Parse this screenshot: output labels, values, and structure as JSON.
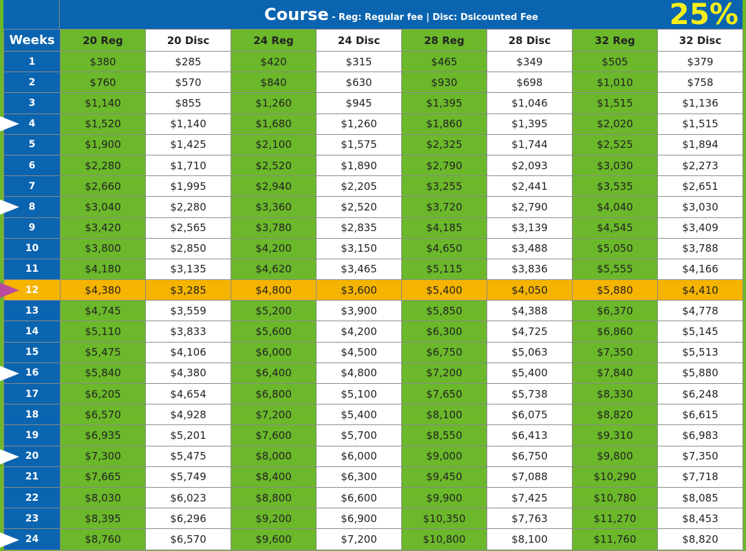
{
  "title": {
    "main": "Course",
    "subtitle": " - Reg: Regular fee | Disc: Dsicounted Fee",
    "discount": "25%"
  },
  "columns": [
    "Weeks",
    "20 Reg",
    "20 Disc",
    "24 Reg",
    "24 Disc",
    "28 Reg",
    "28 Disc",
    "32 Reg",
    "32 Disc"
  ],
  "colors": {
    "header_blue": "#0a64b0",
    "reg_green": "#6bb82a",
    "highlight_orange": "#f5b400",
    "discount_yellow": "#f5ee1a",
    "marker_magenta": "#b94aa0",
    "marker_white": "#ffffff"
  },
  "highlighted_week": "12",
  "rows": [
    {
      "week": "1",
      "values": [
        "$380",
        "$285",
        "$420",
        "$315",
        "$465",
        "$349",
        "$505",
        "$379"
      ]
    },
    {
      "week": "2",
      "values": [
        "$760",
        "$570",
        "$840",
        "$630",
        "$930",
        "$698",
        "$1,010",
        "$758"
      ]
    },
    {
      "week": "3",
      "values": [
        "$1,140",
        "$855",
        "$1,260",
        "$945",
        "$1,395",
        "$1,046",
        "$1,515",
        "$1,136"
      ]
    },
    {
      "week": "4",
      "marker": "white",
      "values": [
        "$1,520",
        "$1,140",
        "$1,680",
        "$1,260",
        "$1,860",
        "$1,395",
        "$2,020",
        "$1,515"
      ]
    },
    {
      "week": "5",
      "values": [
        "$1,900",
        "$1,425",
        "$2,100",
        "$1,575",
        "$2,325",
        "$1,744",
        "$2,525",
        "$1,894"
      ]
    },
    {
      "week": "6",
      "values": [
        "$2,280",
        "$1,710",
        "$2,520",
        "$1,890",
        "$2,790",
        "$2,093",
        "$3,030",
        "$2,273"
      ]
    },
    {
      "week": "7",
      "values": [
        "$2,660",
        "$1,995",
        "$2,940",
        "$2,205",
        "$3,255",
        "$2,441",
        "$3,535",
        "$2,651"
      ]
    },
    {
      "week": "8",
      "marker": "white",
      "values": [
        "$3,040",
        "$2,280",
        "$3,360",
        "$2,520",
        "$3,720",
        "$2,790",
        "$4,040",
        "$3,030"
      ]
    },
    {
      "week": "9",
      "values": [
        "$3,420",
        "$2,565",
        "$3,780",
        "$2,835",
        "$4,185",
        "$3,139",
        "$4,545",
        "$3,409"
      ]
    },
    {
      "week": "10",
      "values": [
        "$3,800",
        "$2,850",
        "$4,200",
        "$3,150",
        "$4,650",
        "$3,488",
        "$5,050",
        "$3,788"
      ]
    },
    {
      "week": "11",
      "values": [
        "$4,180",
        "$3,135",
        "$4,620",
        "$3,465",
        "$5,115",
        "$3,836",
        "$5,555",
        "$4,166"
      ]
    },
    {
      "week": "12",
      "marker": "magenta",
      "values": [
        "$4,380",
        "$3,285",
        "$4,800",
        "$3,600",
        "$5,400",
        "$4,050",
        "$5,880",
        "$4,410"
      ]
    },
    {
      "week": "13",
      "values": [
        "$4,745",
        "$3,559",
        "$5,200",
        "$3,900",
        "$5,850",
        "$4,388",
        "$6,370",
        "$4,778"
      ]
    },
    {
      "week": "14",
      "values": [
        "$5,110",
        "$3,833",
        "$5,600",
        "$4,200",
        "$6,300",
        "$4,725",
        "$6,860",
        "$5,145"
      ]
    },
    {
      "week": "15",
      "values": [
        "$5,475",
        "$4,106",
        "$6,000",
        "$4,500",
        "$6,750",
        "$5,063",
        "$7,350",
        "$5,513"
      ]
    },
    {
      "week": "16",
      "marker": "white",
      "values": [
        "$5,840",
        "$4,380",
        "$6,400",
        "$4,800",
        "$7,200",
        "$5,400",
        "$7,840",
        "$5,880"
      ]
    },
    {
      "week": "17",
      "values": [
        "$6,205",
        "$4,654",
        "$6,800",
        "$5,100",
        "$7,650",
        "$5,738",
        "$8,330",
        "$6,248"
      ]
    },
    {
      "week": "18",
      "values": [
        "$6,570",
        "$4,928",
        "$7,200",
        "$5,400",
        "$8,100",
        "$6,075",
        "$8,820",
        "$6,615"
      ]
    },
    {
      "week": "19",
      "values": [
        "$6,935",
        "$5,201",
        "$7,600",
        "$5,700",
        "$8,550",
        "$6,413",
        "$9,310",
        "$6,983"
      ]
    },
    {
      "week": "20",
      "marker": "white",
      "values": [
        "$7,300",
        "$5,475",
        "$8,000",
        "$6,000",
        "$9,000",
        "$6,750",
        "$9,800",
        "$7,350"
      ]
    },
    {
      "week": "21",
      "values": [
        "$7,665",
        "$5,749",
        "$8,400",
        "$6,300",
        "$9,450",
        "$7,088",
        "$10,290",
        "$7,718"
      ]
    },
    {
      "week": "22",
      "values": [
        "$8,030",
        "$6,023",
        "$8,800",
        "$6,600",
        "$9,900",
        "$7,425",
        "$10,780",
        "$8,085"
      ]
    },
    {
      "week": "23",
      "values": [
        "$8,395",
        "$6,296",
        "$9,200",
        "$6,900",
        "$10,350",
        "$7,763",
        "$11,270",
        "$8,453"
      ]
    },
    {
      "week": "24",
      "marker": "white",
      "values": [
        "$8,760",
        "$6,570",
        "$9,600",
        "$7,200",
        "$10,800",
        "$8,100",
        "$11,760",
        "$8,820"
      ]
    }
  ]
}
